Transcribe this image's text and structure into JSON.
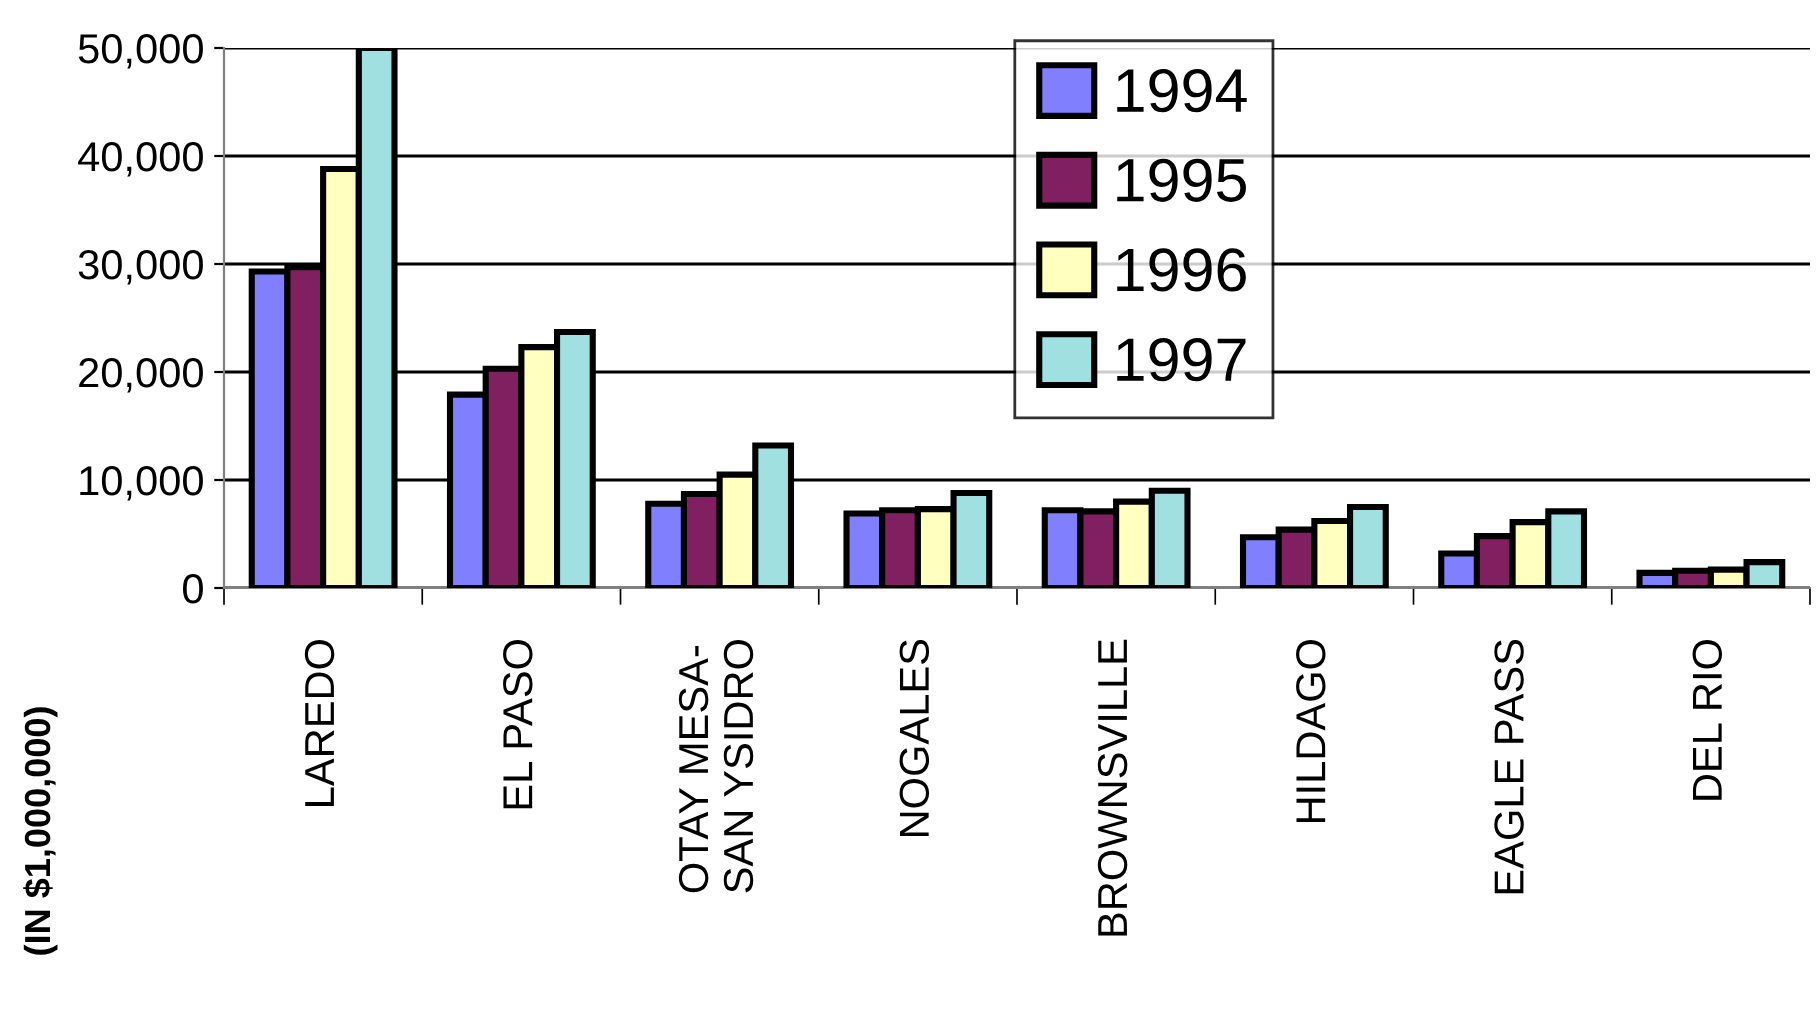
{
  "chart_data": {
    "type": "bar",
    "ylabel": "(IN $1,000,000)",
    "categories": [
      "LAREDO",
      "EL PASO",
      "OTAY MESA-\nSAN YSIDRO",
      "NOGALES",
      "BROWNSVILLE",
      "HILDAGO",
      "EAGLE PASS",
      "DEL RIO"
    ],
    "series": [
      {
        "name": "1994",
        "color": "#8080ff",
        "values": [
          29300,
          17900,
          7800,
          6900,
          7200,
          4700,
          3200,
          1400
        ]
      },
      {
        "name": "1995",
        "color": "#802060",
        "values": [
          29700,
          20300,
          8700,
          7200,
          7100,
          5400,
          4800,
          1600
        ]
      },
      {
        "name": "1996",
        "color": "#ffffc0",
        "values": [
          38800,
          22300,
          10500,
          7300,
          8000,
          6200,
          6100,
          1700
        ]
      },
      {
        "name": "1997",
        "color": "#a0e0e0",
        "values": [
          50000,
          23700,
          13200,
          8800,
          9000,
          7500,
          7100,
          2400
        ]
      }
    ],
    "ylim": [
      0,
      50000
    ],
    "yticks": [
      {
        "value": 0,
        "label": "0"
      },
      {
        "value": 10000,
        "label": "10,000"
      },
      {
        "value": 20000,
        "label": "20,000"
      },
      {
        "value": 30000,
        "label": "30,000"
      },
      {
        "value": 40000,
        "label": "40,000"
      },
      {
        "value": 50000,
        "label": "50,000"
      }
    ],
    "grid": "y",
    "legend": "top"
  }
}
